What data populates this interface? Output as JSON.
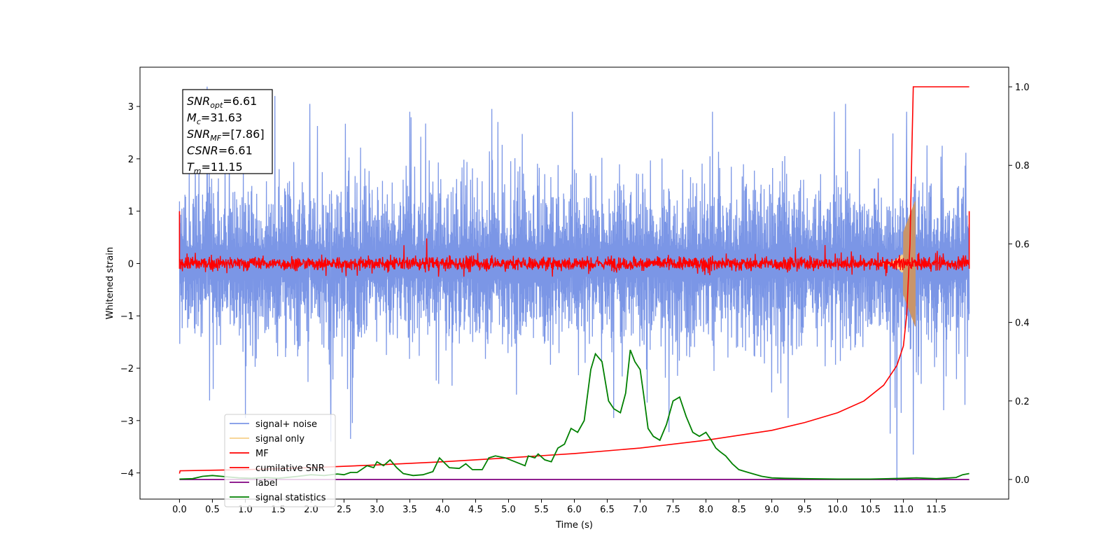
{
  "chart_data": {
    "type": "line",
    "xlabel": "Time (s)",
    "ylabel_left": "Whitened strain",
    "xlim": [
      -0.6,
      12.6
    ],
    "ylim_left": [
      -4.5,
      3.75
    ],
    "ylim_right": [
      -0.05,
      1.05
    ],
    "x_ticks": [
      0.0,
      0.5,
      1.0,
      1.5,
      2.0,
      2.5,
      3.0,
      3.5,
      4.0,
      4.5,
      5.0,
      5.5,
      6.0,
      6.5,
      7.0,
      7.5,
      8.0,
      8.5,
      9.0,
      9.5,
      10.0,
      10.5,
      11.0,
      11.5
    ],
    "x_tick_labels": [
      "0.0",
      "0.5",
      "1.0",
      "1.5",
      "2.0",
      "2.5",
      "3.0",
      "3.5",
      "4.0",
      "4.5",
      "5.0",
      "5.5",
      "6.0",
      "6.5",
      "7.0",
      "7.5",
      "8.0",
      "8.5",
      "9.0",
      "9.5",
      "10.0",
      "10.5",
      "11.0",
      "11.5"
    ],
    "y_ticks_left": [
      3,
      2,
      1,
      0,
      -1,
      -2,
      -3,
      -4
    ],
    "y_tick_labels_left": [
      "3",
      "2",
      "1",
      "0",
      "−1",
      "−2",
      "−3",
      "−4"
    ],
    "y_ticks_right": [
      1.0,
      0.8,
      0.6,
      0.4,
      0.2,
      0.0
    ],
    "y_tick_labels_right": [
      "1.0",
      "0.8",
      "0.6",
      "0.4",
      "0.2",
      "0.0"
    ],
    "annotation_box": {
      "lines": [
        {
          "main": "SNR",
          "sub": "opt",
          "rest": "=6.61"
        },
        {
          "main": "M",
          "sub": "c",
          "rest": "=31.63"
        },
        {
          "main": "SNR",
          "sub": "MF",
          "rest": "=[7.86]"
        },
        {
          "main": "CSNR",
          "sub": "",
          "rest": "=6.61"
        },
        {
          "main": "T",
          "sub": "m",
          "rest": "=11.15"
        }
      ]
    },
    "legend": {
      "placement": "lower-left",
      "entries": [
        {
          "label": "signal+ noise",
          "color": "#7b96e6"
        },
        {
          "label": "signal only",
          "color": "#f7d08a"
        },
        {
          "label": "MF",
          "color": "#ff0000"
        },
        {
          "label": "cumilative SNR",
          "color": "#ff0000"
        },
        {
          "label": "label",
          "color": "#800080"
        },
        {
          "label": "signal statistics",
          "color": "#008000"
        }
      ]
    },
    "series": [
      {
        "name": "signal+ noise",
        "axis": "left",
        "color": "#7b96e6",
        "x_range": [
          0.0,
          12.0
        ],
        "amplitude_envelope": [
          -1.9,
          1.9
        ],
        "extreme_spikes": [
          {
            "x": 0.42,
            "y": 3.38
          },
          {
            "x": 1.45,
            "y": 3.2
          },
          {
            "x": 1.98,
            "y": 3.05
          },
          {
            "x": 3.5,
            "y": 2.9
          },
          {
            "x": 5.97,
            "y": 2.9
          },
          {
            "x": 8.1,
            "y": 2.9
          },
          {
            "x": 9.95,
            "y": 2.9
          },
          {
            "x": 10.12,
            "y": 3.05
          },
          {
            "x": 10.9,
            "y": -4.15
          },
          {
            "x": 11.15,
            "y": -3.65
          },
          {
            "x": 11.05,
            "y": 2.9
          },
          {
            "x": 2.6,
            "y": -3.35
          },
          {
            "x": 2.3,
            "y": -3.4
          },
          {
            "x": 1.0,
            "y": -2.95
          },
          {
            "x": 6.6,
            "y": -2.95
          },
          {
            "x": 9.25,
            "y": -2.95
          },
          {
            "x": 10.8,
            "y": -3.25
          }
        ]
      },
      {
        "name": "signal only",
        "axis": "left",
        "color": "#f7d08a",
        "chirp_start": 10.6,
        "chirp_peak_time": 11.15,
        "chirp_peak_amplitude": 0.55
      },
      {
        "name": "MF",
        "axis": "left",
        "color": "#ff0000",
        "x_range": [
          0.0,
          12.0
        ],
        "amplitude_envelope": [
          -0.2,
          0.25
        ],
        "edge_spikes": [
          {
            "x": 0.0,
            "y": 1.0
          },
          {
            "x": 0.0,
            "y": -0.1
          },
          {
            "x": 12.0,
            "y": 1.0
          },
          {
            "x": 12.0,
            "y": -0.1
          }
        ]
      },
      {
        "name": "cumilative SNR",
        "axis": "right",
        "color": "#ff0000",
        "x": [
          0.0,
          0.01,
          1.0,
          2.0,
          3.0,
          4.0,
          5.0,
          6.0,
          7.0,
          8.0,
          9.0,
          9.5,
          10.0,
          10.4,
          10.7,
          10.9,
          11.0,
          11.05,
          11.1,
          11.13,
          11.15,
          12.0
        ],
        "values": [
          0.015,
          0.022,
          0.025,
          0.03,
          0.037,
          0.045,
          0.055,
          0.066,
          0.08,
          0.1,
          0.125,
          0.145,
          0.17,
          0.2,
          0.24,
          0.29,
          0.34,
          0.42,
          0.6,
          0.85,
          1.0,
          1.0
        ]
      },
      {
        "name": "label",
        "axis": "right",
        "color": "#800080",
        "x": [
          0.0,
          12.0
        ],
        "values": [
          0.0,
          0.0
        ]
      },
      {
        "name": "signal statistics",
        "axis": "right",
        "color": "#008000",
        "x": [
          0.0,
          0.2,
          0.35,
          0.5,
          0.7,
          0.9,
          1.1,
          1.3,
          1.5,
          1.8,
          2.0,
          2.2,
          2.4,
          2.5,
          2.6,
          2.7,
          2.85,
          2.95,
          3.0,
          3.1,
          3.2,
          3.3,
          3.4,
          3.55,
          3.7,
          3.85,
          3.95,
          4.1,
          4.25,
          4.35,
          4.45,
          4.6,
          4.7,
          4.8,
          4.95,
          5.1,
          5.25,
          5.3,
          5.4,
          5.45,
          5.55,
          5.65,
          5.75,
          5.85,
          5.95,
          6.05,
          6.15,
          6.25,
          6.32,
          6.42,
          6.52,
          6.6,
          6.7,
          6.78,
          6.85,
          6.92,
          7.0,
          7.05,
          7.12,
          7.2,
          7.3,
          7.4,
          7.5,
          7.6,
          7.7,
          7.8,
          7.9,
          8.0,
          8.08,
          8.15,
          8.22,
          8.3,
          8.4,
          8.5,
          8.6,
          8.7,
          8.85,
          9.0,
          9.2,
          9.5,
          10.0,
          10.5,
          11.0,
          11.2,
          11.5,
          11.8,
          11.9,
          12.0
        ],
        "values": [
          0.001,
          0.002,
          0.008,
          0.01,
          0.007,
          0.004,
          0.003,
          0.005,
          0.003,
          0.008,
          0.012,
          0.01,
          0.014,
          0.012,
          0.018,
          0.018,
          0.035,
          0.03,
          0.045,
          0.035,
          0.05,
          0.03,
          0.015,
          0.01,
          0.012,
          0.02,
          0.055,
          0.03,
          0.028,
          0.04,
          0.025,
          0.025,
          0.055,
          0.06,
          0.055,
          0.045,
          0.035,
          0.06,
          0.055,
          0.065,
          0.05,
          0.045,
          0.08,
          0.09,
          0.13,
          0.12,
          0.15,
          0.28,
          0.32,
          0.3,
          0.2,
          0.18,
          0.17,
          0.22,
          0.33,
          0.3,
          0.28,
          0.22,
          0.13,
          0.11,
          0.1,
          0.14,
          0.2,
          0.21,
          0.16,
          0.12,
          0.11,
          0.12,
          0.1,
          0.08,
          0.07,
          0.06,
          0.04,
          0.025,
          0.02,
          0.015,
          0.008,
          0.004,
          0.003,
          0.002,
          0.001,
          0.001,
          0.003,
          0.004,
          0.002,
          0.005,
          0.012,
          0.015
        ]
      }
    ]
  }
}
